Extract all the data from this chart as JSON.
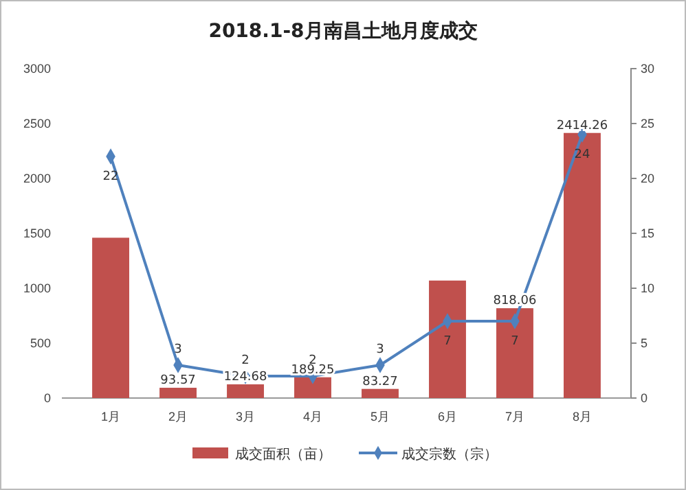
{
  "chart_data": {
    "type": "bar",
    "title": "2018.1-8月南昌土地月度成交",
    "categories": [
      "1月",
      "2月",
      "3月",
      "4月",
      "5月",
      "6月",
      "7月",
      "8月"
    ],
    "series": [
      {
        "name": "成交面积（亩）",
        "color": "#c0504d",
        "values": [
          1460,
          93.57,
          124.68,
          189.25,
          83.27,
          1070,
          818.06,
          2414.26
        ],
        "value_labels": [
          null,
          "93.57",
          "124.68",
          "189.25",
          "83.27",
          null,
          "818.06",
          "2414.26"
        ]
      },
      {
        "name": "成交宗数（宗）",
        "type": "line",
        "axis": "y2",
        "color": "#4f81bd",
        "marker": "diamond",
        "values": [
          22,
          3,
          2,
          2,
          3,
          7,
          7,
          24
        ],
        "data_labels": true
      }
    ],
    "ylim": [
      0,
      3000
    ],
    "yticks": [
      0,
      500,
      1000,
      1500,
      2000,
      2500,
      3000
    ],
    "y2lim": [
      0,
      30
    ],
    "y2ticks": [
      0,
      5,
      10,
      15,
      20,
      25,
      30
    ],
    "grid": false,
    "legend": "bottom"
  }
}
